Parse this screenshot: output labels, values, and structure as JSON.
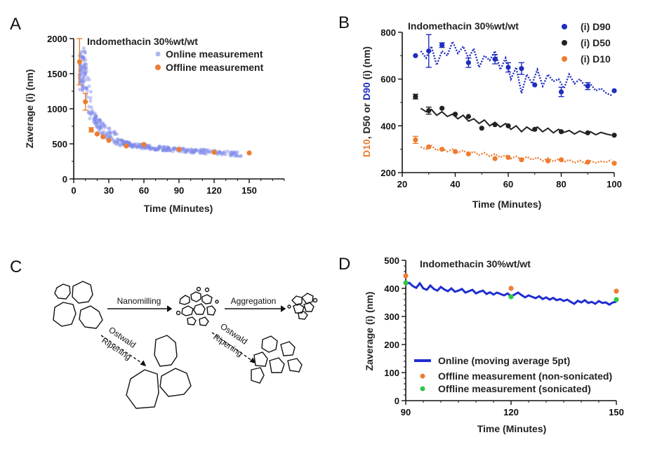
{
  "panels": {
    "A": {
      "letter": "A",
      "chart_data": {
        "type": "scatter",
        "title": "Indomethacin 30%wt/wt",
        "xlabel": "Time (Minutes)",
        "ylabel": "Zaverage (i) (nm)",
        "xlim": [
          0,
          180
        ],
        "ylim": [
          0,
          2000
        ],
        "xticks": [
          0,
          30,
          60,
          90,
          120,
          150
        ],
        "yticks": [
          0,
          500,
          1000,
          1500,
          2000
        ],
        "legend_position": "top-right",
        "series": [
          {
            "name": "Online measurement",
            "color": "#7f8ae8",
            "description_points": [
              [
                5,
                1500
              ],
              [
                6,
                1650
              ],
              [
                7,
                1580
              ],
              [
                8,
                1450
              ],
              [
                9,
                1750
              ],
              [
                10,
                1550
              ],
              [
                11,
                1400
              ],
              [
                12,
                1300
              ],
              [
                13,
                1200
              ],
              [
                14,
                1050
              ],
              [
                15,
                980
              ],
              [
                16,
                920
              ],
              [
                17,
                880
              ],
              [
                18,
                860
              ],
              [
                19,
                820
              ],
              [
                20,
                800
              ],
              [
                22,
                760
              ],
              [
                24,
                720
              ],
              [
                26,
                690
              ],
              [
                28,
                660
              ],
              [
                30,
                640
              ],
              [
                32,
                620
              ],
              [
                34,
                600
              ],
              [
                36,
                580
              ],
              [
                38,
                560
              ],
              [
                40,
                540
              ],
              [
                42,
                520
              ],
              [
                45,
                500
              ],
              [
                50,
                480
              ],
              [
                55,
                470
              ],
              [
                60,
                460
              ],
              [
                70,
                440
              ],
              [
                80,
                430
              ],
              [
                90,
                415
              ],
              [
                100,
                400
              ],
              [
                110,
                390
              ],
              [
                120,
                380
              ],
              [
                130,
                365
              ],
              [
                140,
                355
              ],
              [
                145,
                350
              ]
            ]
          },
          {
            "name": "Offline measurement",
            "color": "#ed7d31",
            "x": [
              5,
              10,
              15,
              20,
              25,
              30,
              45,
              60,
              90,
              120,
              150
            ],
            "y": [
              1670,
              1100,
              700,
              640,
              600,
              550,
              470,
              490,
              420,
              380,
              370
            ],
            "err": [
              330,
              120,
              30,
              0,
              0,
              0,
              0,
              0,
              0,
              0,
              0
            ]
          }
        ]
      }
    },
    "B": {
      "letter": "B",
      "chart_data": {
        "type": "line",
        "title": "Indomethacin 30%wt/wt",
        "xlabel": "Time (Minutes)",
        "ylabel_parts": [
          "D10",
          ", D50 or ",
          "D90",
          " (i) (nm)"
        ],
        "ylabel_colors": [
          "#ed7d31",
          "#222222",
          "#1f2dbf",
          "#222222"
        ],
        "xlim": [
          20,
          100
        ],
        "ylim": [
          200,
          800
        ],
        "xticks": [
          20,
          40,
          60,
          80,
          100
        ],
        "yticks": [
          200,
          400,
          600,
          800
        ],
        "legend_position": "top-right",
        "series": [
          {
            "name": "(i) D90",
            "color": "#1f2dbf",
            "offline": {
              "x": [
                25,
                30,
                35,
                45,
                55,
                60,
                65,
                70,
                80,
                90,
                100
              ],
              "y": [
                700,
                720,
                745,
                670,
                685,
                650,
                645,
                575,
                545,
                570,
                550
              ],
              "err": [
                0,
                70,
                10,
                20,
                20,
                20,
                25,
                0,
                20,
                15,
                0
              ]
            },
            "online": {
              "x": [
                27,
                29,
                31,
                33,
                35,
                37,
                39,
                41,
                43,
                45,
                47,
                49,
                51,
                53,
                55,
                57,
                59,
                61,
                63,
                65,
                67,
                69,
                71,
                73,
                75,
                77,
                79,
                81,
                83,
                85,
                87,
                89,
                91,
                93,
                95,
                97,
                99
              ],
              "y": [
                720,
                690,
                740,
                660,
                720,
                700,
                760,
                710,
                740,
                690,
                730,
                650,
                700,
                680,
                720,
                640,
                690,
                600,
                650,
                540,
                620,
                580,
                640,
                570,
                620,
                590,
                600,
                560,
                620,
                580,
                600,
                570,
                580,
                550,
                560,
                540,
                530
              ]
            }
          },
          {
            "name": "(i) D50",
            "color": "#222222",
            "offline": {
              "x": [
                25,
                30,
                35,
                40,
                45,
                50,
                55,
                60,
                70,
                80,
                90,
                100
              ],
              "y": [
                525,
                465,
                475,
                450,
                440,
                390,
                405,
                400,
                385,
                375,
                370,
                360
              ],
              "err": [
                10,
                15,
                0,
                0,
                0,
                0,
                0,
                0,
                0,
                0,
                0,
                0
              ]
            },
            "online": {
              "x": [
                27,
                29,
                31,
                33,
                35,
                37,
                39,
                41,
                43,
                45,
                47,
                49,
                51,
                53,
                55,
                57,
                59,
                61,
                63,
                65,
                67,
                69,
                71,
                73,
                75,
                77,
                79,
                81,
                83,
                85,
                87,
                89,
                91,
                93,
                95,
                97,
                99
              ],
              "y": [
                475,
                460,
                470,
                445,
                460,
                440,
                450,
                430,
                445,
                420,
                430,
                410,
                425,
                400,
                415,
                395,
                410,
                385,
                400,
                375,
                395,
                380,
                395,
                375,
                390,
                370,
                385,
                372,
                380,
                365,
                378,
                368,
                375,
                362,
                372,
                365,
                360
              ]
            }
          },
          {
            "name": "(i) D10",
            "color": "#ed7d31",
            "offline": {
              "x": [
                25,
                30,
                35,
                40,
                45,
                55,
                60,
                65,
                75,
                80,
                90,
                100
              ],
              "y": [
                340,
                310,
                300,
                290,
                280,
                260,
                265,
                255,
                250,
                255,
                245,
                240
              ],
              "err": [
                15,
                0,
                0,
                0,
                0,
                0,
                0,
                0,
                0,
                0,
                0,
                0
              ]
            },
            "online": {
              "x": [
                27,
                29,
                31,
                33,
                35,
                37,
                39,
                41,
                43,
                45,
                47,
                49,
                51,
                53,
                55,
                57,
                59,
                61,
                63,
                65,
                67,
                69,
                71,
                73,
                75,
                77,
                79,
                81,
                83,
                85,
                87,
                89,
                91,
                93,
                95,
                97,
                99
              ],
              "y": [
                310,
                300,
                315,
                295,
                305,
                290,
                300,
                285,
                295,
                280,
                290,
                275,
                285,
                270,
                280,
                265,
                275,
                260,
                270,
                255,
                268,
                255,
                265,
                250,
                262,
                248,
                258,
                245,
                255,
                242,
                252,
                240,
                250,
                242,
                248,
                245,
                255
              ]
            }
          }
        ]
      }
    },
    "C": {
      "letter": "C",
      "labels": {
        "nanomilling": "Nanomilling",
        "aggregation": "Aggregation",
        "ostwald1_line1": "Ostwald",
        "ostwald1_line2": "Ripening",
        "ostwald2_line1": "Ostwald",
        "ostwald2_line2": "Ripening"
      }
    },
    "D": {
      "letter": "D",
      "chart_data": {
        "type": "line",
        "title": "Indomethacin 30%wt/wt",
        "xlabel": "Time (Minutes)",
        "ylabel": "Zaverage (i) (nm)",
        "xlim": [
          90,
          150
        ],
        "ylim": [
          0,
          500
        ],
        "xticks": [
          90,
          120,
          150
        ],
        "yticks": [
          0,
          100,
          200,
          300,
          400,
          500
        ],
        "legend_position": "bottom-left",
        "series": [
          {
            "name": "Online (moving average 5pt)",
            "color": "#1f2dd0",
            "x": [
              90,
              91,
              92,
              93,
              94,
              95,
              96,
              97,
              98,
              99,
              100,
              101,
              102,
              103,
              104,
              105,
              106,
              107,
              108,
              109,
              110,
              111,
              112,
              113,
              114,
              115,
              116,
              117,
              118,
              119,
              120,
              121,
              122,
              123,
              124,
              125,
              126,
              127,
              128,
              129,
              130,
              131,
              132,
              133,
              134,
              135,
              136,
              137,
              138,
              139,
              140,
              141,
              142,
              143,
              144,
              145,
              146,
              147,
              148,
              149,
              150
            ],
            "y": [
              415,
              420,
              408,
              402,
              418,
              400,
              395,
              410,
              398,
              392,
              405,
              396,
              390,
              400,
              388,
              392,
              398,
              385,
              390,
              395,
              382,
              388,
              392,
              380,
              386,
              378,
              385,
              380,
              375,
              382,
              372,
              378,
              385,
              376,
              368,
              375,
              370,
              365,
              372,
              362,
              368,
              360,
              366,
              358,
              362,
              355,
              360,
              352,
              345,
              356,
              350,
              358,
              348,
              352,
              345,
              355,
              348,
              350,
              342,
              350,
              352
            ]
          },
          {
            "name": "Offline measurement (non-sonicated)",
            "color": "#ed7d31",
            "x": [
              90,
              120,
              150
            ],
            "y": [
              445,
              400,
              390
            ]
          },
          {
            "name": "Offline measurement (sonicated)",
            "color": "#2ec844",
            "x": [
              90,
              120,
              150
            ],
            "y": [
              420,
              370,
              360
            ]
          }
        ]
      }
    }
  }
}
